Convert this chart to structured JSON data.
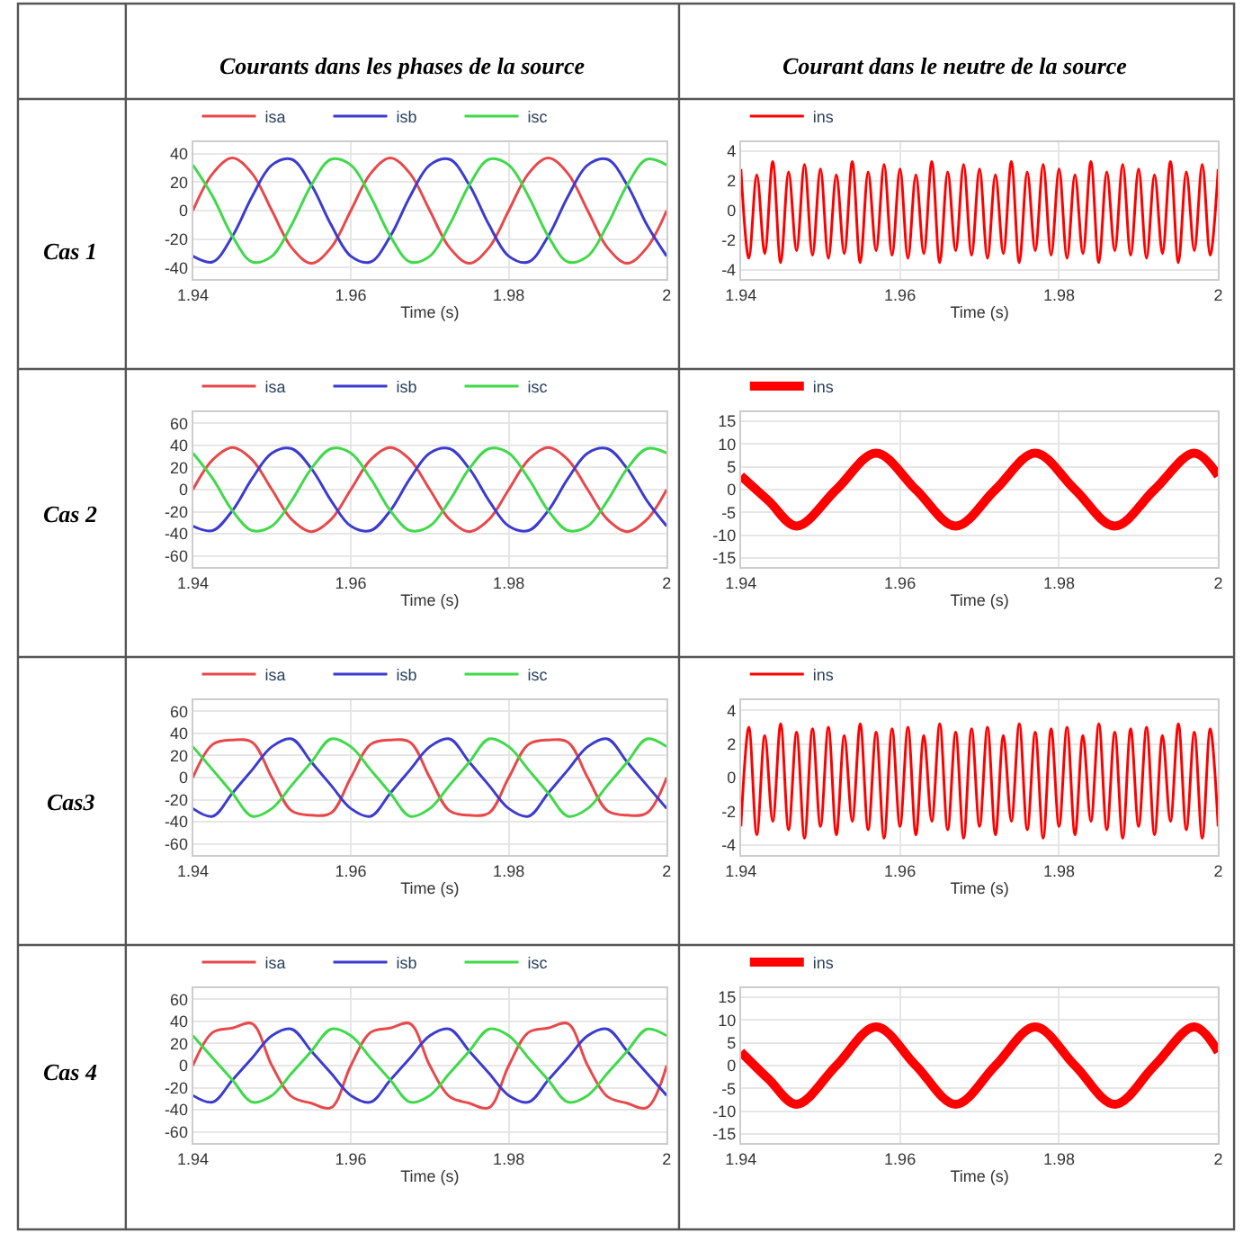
{
  "chart_data": [
    {
      "type": "line",
      "title": "Courants dans les phases de la source",
      "annotations": [
        "Cas 1"
      ],
      "xlabel": "Time (s)",
      "xlim": [
        1.94,
        2.0
      ],
      "xticks": [
        1.94,
        1.96,
        1.98,
        2
      ],
      "ylim": [
        -48,
        48
      ],
      "yticks": [
        -40,
        -20,
        0,
        20,
        40
      ],
      "grid": true,
      "legend": "top left",
      "x": [
        1.94,
        1.9425,
        1.945,
        1.9475,
        1.95,
        1.9525,
        1.955,
        1.9575,
        1.96,
        1.9625,
        1.965,
        1.9675,
        1.97,
        1.9725,
        1.975,
        1.9775,
        1.98,
        1.9825,
        1.985,
        1.9875,
        1.99,
        1.9925,
        1.995,
        1.9975,
        2.0
      ],
      "series": [
        {
          "name": "isa",
          "color": "#e8484a",
          "values": [
            0,
            26,
            37,
            26,
            0,
            -26,
            -37,
            -26,
            0,
            26,
            37,
            26,
            0,
            -26,
            -37,
            -26,
            0,
            26,
            37,
            26,
            0,
            -26,
            -37,
            -26,
            0
          ]
        },
        {
          "name": "isb",
          "color": "#3b3bd0",
          "values": [
            -32,
            -36,
            -18,
            10,
            32,
            36,
            18,
            -10,
            -32,
            -36,
            -18,
            10,
            32,
            36,
            18,
            -10,
            -32,
            -36,
            -18,
            10,
            32,
            36,
            18,
            -10,
            -32
          ]
        },
        {
          "name": "isc",
          "color": "#3fd94a",
          "values": [
            32,
            10,
            -18,
            -36,
            -32,
            -10,
            18,
            36,
            32,
            10,
            -18,
            -36,
            -32,
            -10,
            18,
            36,
            32,
            10,
            -18,
            -36,
            -32,
            -10,
            18,
            36,
            32
          ]
        }
      ]
    },
    {
      "type": "line",
      "title": "Courant dans le neutre de la source",
      "xlabel": "Time (s)",
      "xlim": [
        1.94,
        2.0
      ],
      "xticks": [
        1.94,
        1.96,
        1.98,
        2
      ],
      "ylim": [
        -4.6,
        4.6
      ],
      "yticks": [
        -4,
        -2,
        0,
        2,
        4
      ],
      "grid": true,
      "legend": "top left",
      "x": [
        1.94,
        1.941,
        1.942,
        1.943,
        1.944,
        1.945,
        1.946,
        1.947,
        1.948,
        1.949,
        1.95,
        1.951,
        1.952,
        1.953,
        1.954,
        1.955,
        1.956,
        1.957,
        1.958,
        1.959,
        1.96,
        1.961,
        1.962,
        1.963,
        1.964,
        1.965,
        1.966,
        1.967,
        1.968,
        1.969,
        1.97,
        1.971,
        1.972,
        1.973,
        1.974,
        1.975,
        1.976,
        1.977,
        1.978,
        1.979,
        1.98,
        1.981,
        1.982,
        1.983,
        1.984,
        1.985,
        1.986,
        1.987,
        1.988,
        1.989,
        1.99,
        1.991,
        1.992,
        1.993,
        1.994,
        1.995,
        1.996,
        1.997,
        1.998,
        1.999,
        2.0
      ],
      "series": [
        {
          "name": "ins",
          "color": "#ff0000",
          "values": [
            2.8,
            -3.2,
            2.4,
            -2.9,
            3.3,
            -3.5,
            2.6,
            -2.7,
            3.1,
            -3.0,
            2.8,
            -3.2,
            2.4,
            -2.9,
            3.3,
            -3.5,
            2.6,
            -2.7,
            3.1,
            -3.0,
            2.8,
            -3.2,
            2.4,
            -2.9,
            3.3,
            -3.5,
            2.6,
            -2.7,
            3.1,
            -3.0,
            2.8,
            -3.2,
            2.4,
            -2.9,
            3.3,
            -3.5,
            2.6,
            -2.7,
            3.1,
            -3.0,
            2.8,
            -3.2,
            2.4,
            -2.9,
            3.3,
            -3.5,
            2.6,
            -2.7,
            3.1,
            -3.0,
            2.8,
            -3.2,
            2.4,
            -2.9,
            3.3,
            -3.5,
            2.6,
            -2.7,
            3.1,
            -3.0,
            2.8
          ]
        }
      ]
    },
    {
      "type": "line",
      "annotations": [
        "Cas 2"
      ],
      "xlabel": "Time (s)",
      "xlim": [
        1.94,
        2.0
      ],
      "xticks": [
        1.94,
        1.96,
        1.98,
        2
      ],
      "ylim": [
        -70,
        70
      ],
      "yticks": [
        -60,
        -40,
        -20,
        0,
        20,
        40,
        60
      ],
      "grid": true,
      "legend": "top left",
      "x": [
        1.94,
        1.9425,
        1.945,
        1.9475,
        1.95,
        1.9525,
        1.955,
        1.9575,
        1.96,
        1.9625,
        1.965,
        1.9675,
        1.97,
        1.9725,
        1.975,
        1.9775,
        1.98,
        1.9825,
        1.985,
        1.9875,
        1.99,
        1.9925,
        1.995,
        1.9975,
        2.0
      ],
      "series": [
        {
          "name": "isa",
          "color": "#e8484a",
          "values": [
            0,
            27,
            38,
            27,
            0,
            -27,
            -38,
            -27,
            0,
            27,
            38,
            27,
            0,
            -27,
            -38,
            -27,
            0,
            27,
            38,
            27,
            0,
            -27,
            -38,
            -27,
            0
          ]
        },
        {
          "name": "isb",
          "color": "#3b3bd0",
          "values": [
            -33,
            -37,
            -19,
            10,
            33,
            37,
            19,
            -10,
            -33,
            -37,
            -19,
            10,
            33,
            37,
            19,
            -10,
            -33,
            -37,
            -19,
            10,
            33,
            37,
            19,
            -10,
            -33
          ]
        },
        {
          "name": "isc",
          "color": "#3fd94a",
          "values": [
            33,
            10,
            -19,
            -37,
            -33,
            -10,
            19,
            37,
            33,
            10,
            -19,
            -37,
            -33,
            -10,
            19,
            37,
            33,
            10,
            -19,
            -37,
            -33,
            -10,
            19,
            37,
            33
          ]
        }
      ]
    },
    {
      "type": "line",
      "xlabel": "Time (s)",
      "xlim": [
        1.94,
        2.0
      ],
      "xticks": [
        1.94,
        1.96,
        1.98,
        2
      ],
      "ylim": [
        -17,
        17
      ],
      "yticks": [
        -15,
        -10,
        -5,
        0,
        5,
        10,
        15
      ],
      "grid": true,
      "legend": "top left",
      "x": [
        1.94,
        1.9435,
        1.947,
        1.952,
        1.957,
        1.962,
        1.967,
        1.972,
        1.977,
        1.982,
        1.987,
        1.992,
        1.997,
        2.0
      ],
      "series": [
        {
          "name": "ins",
          "color": "#ff0000",
          "values": [
            3,
            -2.5,
            -8,
            0,
            8,
            0,
            -8,
            0,
            8,
            0,
            -8,
            0,
            8,
            3
          ]
        }
      ]
    },
    {
      "type": "line",
      "annotations": [
        "Cas3"
      ],
      "xlabel": "Time (s)",
      "xlim": [
        1.94,
        2.0
      ],
      "xticks": [
        1.94,
        1.96,
        1.98,
        2
      ],
      "ylim": [
        -70,
        70
      ],
      "yticks": [
        -60,
        -40,
        -20,
        0,
        20,
        40,
        60
      ],
      "grid": true,
      "legend": "top left",
      "x": [
        1.94,
        1.9425,
        1.945,
        1.9475,
        1.95,
        1.9525,
        1.955,
        1.9575,
        1.96,
        1.9625,
        1.965,
        1.9675,
        1.97,
        1.9725,
        1.975,
        1.9775,
        1.98,
        1.9825,
        1.985,
        1.9875,
        1.99,
        1.9925,
        1.995,
        1.9975,
        2.0
      ],
      "series": [
        {
          "name": "isa",
          "color": "#e8484a",
          "values": [
            0,
            30,
            34,
            32,
            0,
            -30,
            -34,
            -32,
            0,
            30,
            34,
            32,
            0,
            -30,
            -34,
            -32,
            0,
            30,
            34,
            32,
            0,
            -30,
            -34,
            -32,
            0
          ]
        },
        {
          "name": "isb",
          "color": "#3b3bd0",
          "values": [
            -28,
            -35,
            -14,
            7,
            28,
            35,
            14,
            -7,
            -28,
            -35,
            -14,
            7,
            28,
            35,
            14,
            -7,
            -28,
            -35,
            -14,
            7,
            28,
            35,
            14,
            -7,
            -28
          ]
        },
        {
          "name": "isc",
          "color": "#3fd94a",
          "values": [
            28,
            7,
            -14,
            -35,
            -28,
            -7,
            14,
            35,
            28,
            7,
            -14,
            -35,
            -28,
            -7,
            14,
            35,
            28,
            7,
            -14,
            -35,
            -28,
            -7,
            14,
            35,
            28
          ]
        }
      ]
    },
    {
      "type": "line",
      "xlabel": "Time (s)",
      "xlim": [
        1.94,
        2.0
      ],
      "xticks": [
        1.94,
        1.96,
        1.98,
        2
      ],
      "ylim": [
        -4.6,
        4.6
      ],
      "yticks": [
        -4,
        -2,
        0,
        2,
        4
      ],
      "grid": true,
      "legend": "top left",
      "x": [
        1.94,
        1.941,
        1.942,
        1.943,
        1.944,
        1.945,
        1.946,
        1.947,
        1.948,
        1.949,
        1.95,
        1.951,
        1.952,
        1.953,
        1.954,
        1.955,
        1.956,
        1.957,
        1.958,
        1.959,
        1.96,
        1.961,
        1.962,
        1.963,
        1.964,
        1.965,
        1.966,
        1.967,
        1.968,
        1.969,
        1.97,
        1.971,
        1.972,
        1.973,
        1.974,
        1.975,
        1.976,
        1.977,
        1.978,
        1.979,
        1.98,
        1.981,
        1.982,
        1.983,
        1.984,
        1.985,
        1.986,
        1.987,
        1.988,
        1.989,
        1.99,
        1.991,
        1.992,
        1.993,
        1.994,
        1.995,
        1.996,
        1.997,
        1.998,
        1.999,
        2.0
      ],
      "series": [
        {
          "name": "ins",
          "color": "#ff0000",
          "values": [
            -2.9,
            3.0,
            -3.4,
            2.5,
            -2.6,
            3.2,
            -3.1,
            2.7,
            -3.6,
            2.9,
            -2.9,
            3.0,
            -3.4,
            2.5,
            -2.6,
            3.2,
            -3.1,
            2.7,
            -3.6,
            2.9,
            -2.9,
            3.0,
            -3.4,
            2.5,
            -2.6,
            3.2,
            -3.1,
            2.7,
            -3.6,
            2.9,
            -2.9,
            3.0,
            -3.4,
            2.5,
            -2.6,
            3.2,
            -3.1,
            2.7,
            -3.6,
            2.9,
            -2.9,
            3.0,
            -3.4,
            2.5,
            -2.6,
            3.2,
            -3.1,
            2.7,
            -3.6,
            2.9,
            -2.9,
            3.0,
            -3.4,
            2.5,
            -2.6,
            3.2,
            -3.1,
            2.7,
            -3.6,
            2.9,
            -2.9
          ]
        }
      ]
    },
    {
      "type": "line",
      "annotations": [
        "Cas 4"
      ],
      "xlabel": "Time (s)",
      "xlim": [
        1.94,
        2.0
      ],
      "xticks": [
        1.94,
        1.96,
        1.98,
        2
      ],
      "ylim": [
        -70,
        70
      ],
      "yticks": [
        -60,
        -40,
        -20,
        0,
        20,
        40,
        60
      ],
      "grid": true,
      "legend": "top left",
      "x": [
        1.94,
        1.9425,
        1.945,
        1.9475,
        1.95,
        1.9525,
        1.955,
        1.9575,
        1.96,
        1.9625,
        1.965,
        1.9675,
        1.97,
        1.9725,
        1.975,
        1.9775,
        1.98,
        1.9825,
        1.985,
        1.9875,
        1.99,
        1.9925,
        1.995,
        1.9975,
        2.0
      ],
      "series": [
        {
          "name": "isa",
          "color": "#e8484a",
          "values": [
            0,
            30,
            34,
            38,
            0,
            -28,
            -34,
            -38,
            0,
            30,
            34,
            38,
            0,
            -28,
            -34,
            -38,
            0,
            30,
            34,
            38,
            0,
            -28,
            -34,
            -38,
            0
          ]
        },
        {
          "name": "isb",
          "color": "#3b3bd0",
          "values": [
            -27,
            -33,
            -13,
            7,
            27,
            33,
            13,
            -7,
            -27,
            -33,
            -13,
            7,
            27,
            33,
            13,
            -7,
            -27,
            -33,
            -13,
            7,
            27,
            33,
            13,
            -7,
            -27
          ]
        },
        {
          "name": "isc",
          "color": "#3fd94a",
          "values": [
            27,
            7,
            -13,
            -33,
            -27,
            -7,
            13,
            33,
            27,
            7,
            -13,
            -33,
            -27,
            -7,
            13,
            33,
            27,
            7,
            -13,
            -33,
            -27,
            -7,
            13,
            33,
            27
          ]
        }
      ]
    },
    {
      "type": "line",
      "xlabel": "Time (s)",
      "xlim": [
        1.94,
        2.0
      ],
      "xticks": [
        1.94,
        1.96,
        1.98,
        2
      ],
      "ylim": [
        -17,
        17
      ],
      "yticks": [
        -15,
        -10,
        -5,
        0,
        5,
        10,
        15
      ],
      "grid": true,
      "legend": "top left",
      "x": [
        1.94,
        1.9435,
        1.947,
        1.952,
        1.957,
        1.962,
        1.967,
        1.972,
        1.977,
        1.982,
        1.987,
        1.992,
        1.997,
        2.0
      ],
      "series": [
        {
          "name": "ins",
          "color": "#ff0000",
          "values": [
            3,
            -3,
            -8.5,
            0,
            8.5,
            0,
            -8.5,
            0,
            8.5,
            0,
            -8.5,
            0,
            8.5,
            3
          ]
        }
      ]
    }
  ]
}
